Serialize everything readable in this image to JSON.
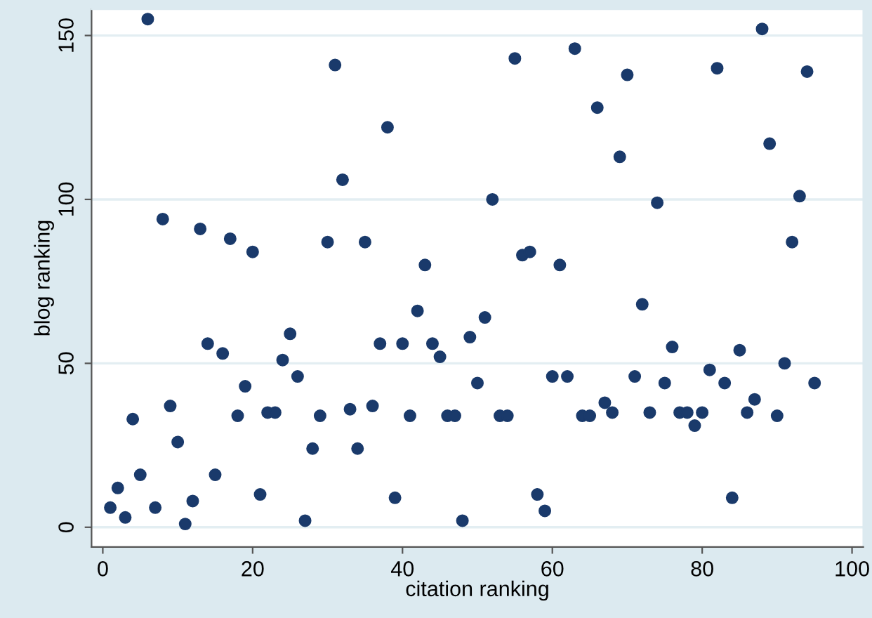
{
  "chart_data": {
    "type": "scatter",
    "xlabel": "citation ranking",
    "ylabel": "blog ranking",
    "xlim": [
      -1.5,
      101.5
    ],
    "ylim": [
      -6,
      158
    ],
    "xticks": [
      0,
      20,
      40,
      60,
      80,
      100
    ],
    "yticks": [
      0,
      50,
      100,
      150
    ],
    "grid": "y",
    "marker": "circle",
    "series": [
      {
        "color": "#1a3a6b",
        "x": [
          1,
          2,
          3,
          4,
          5,
          6,
          7,
          8,
          9,
          10,
          11,
          12,
          13,
          14,
          15,
          16,
          17,
          18,
          19,
          20,
          21,
          22,
          23,
          24,
          25,
          26,
          27,
          28,
          29,
          30,
          31,
          32,
          33,
          34,
          35,
          36,
          37,
          38,
          39,
          40,
          41,
          42,
          43,
          44,
          45,
          46,
          47,
          48,
          49,
          50,
          51,
          52,
          53,
          54,
          55,
          56,
          57,
          58,
          59,
          60,
          61,
          62,
          63,
          64,
          65,
          66,
          67,
          68,
          69,
          70,
          71,
          72,
          73,
          74,
          75,
          76,
          77,
          78,
          79,
          80,
          81,
          82,
          83,
          84,
          85,
          86,
          87,
          88,
          89,
          90,
          91,
          92,
          93,
          94,
          95
        ],
        "values": [
          6,
          12,
          3,
          33,
          16,
          155,
          6,
          94,
          37,
          26,
          1,
          8,
          91,
          56,
          16,
          53,
          88,
          34,
          43,
          84,
          10,
          35,
          35,
          51,
          59,
          46,
          2,
          24,
          34,
          87,
          141,
          106,
          36,
          24,
          87,
          37,
          56,
          122,
          9,
          56,
          34,
          66,
          80,
          56,
          52,
          34,
          34,
          2,
          58,
          44,
          64,
          100,
          34,
          34,
          143,
          83,
          84,
          10,
          5,
          46,
          80,
          46,
          146,
          34,
          34,
          128,
          38,
          35,
          113,
          138,
          46,
          68,
          35,
          99,
          44,
          55,
          35,
          35,
          31,
          35,
          48,
          140,
          44,
          9,
          54,
          35,
          39,
          152,
          117,
          34,
          50,
          87,
          101,
          139,
          44
        ]
      }
    ]
  }
}
